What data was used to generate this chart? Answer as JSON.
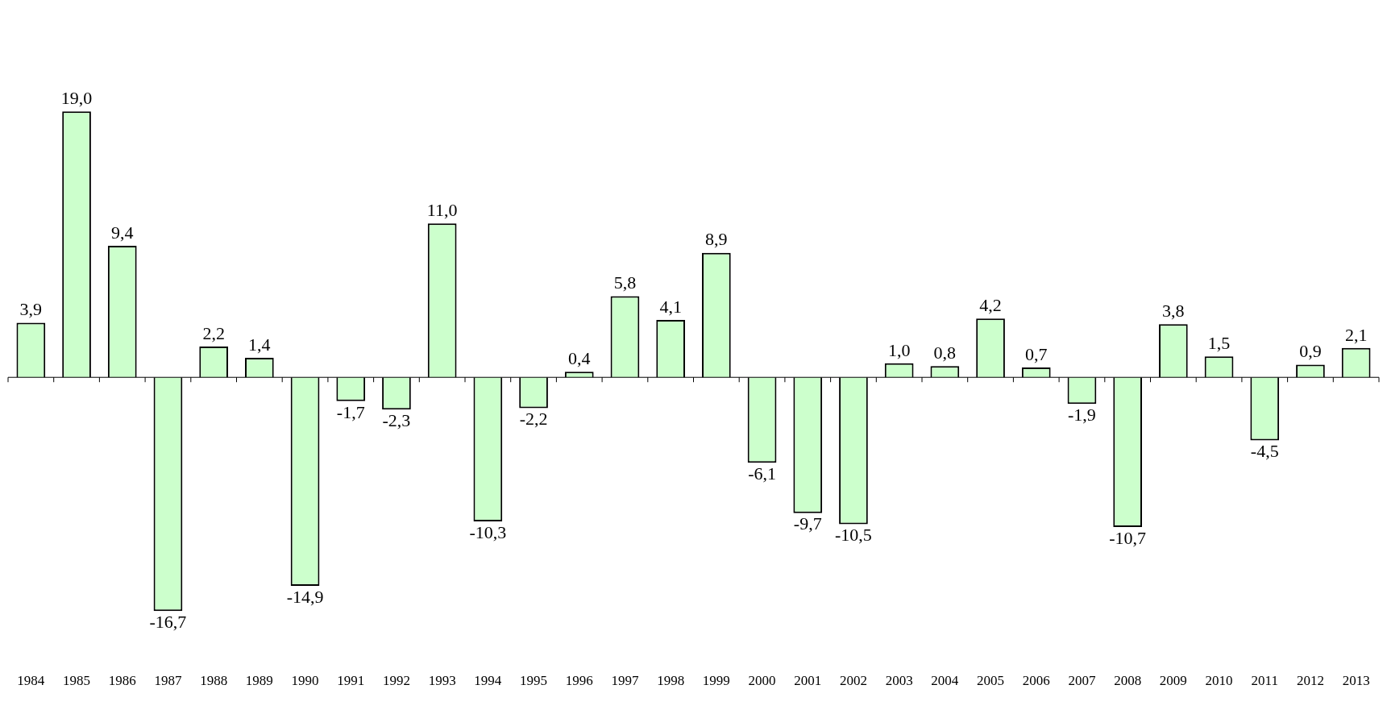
{
  "chart_data": {
    "type": "bar",
    "categories": [
      "1984",
      "1985",
      "1986",
      "1987",
      "1988",
      "1989",
      "1990",
      "1991",
      "1992",
      "1993",
      "1994",
      "1995",
      "1996",
      "1997",
      "1998",
      "1999",
      "2000",
      "2001",
      "2002",
      "2003",
      "2004",
      "2005",
      "2006",
      "2007",
      "2008",
      "2009",
      "2010",
      "2011",
      "2012",
      "2013"
    ],
    "values": [
      3.9,
      19.0,
      9.4,
      -16.7,
      2.2,
      1.4,
      -14.9,
      -1.7,
      -2.3,
      11.0,
      -10.3,
      -2.2,
      0.4,
      5.8,
      4.1,
      8.9,
      -6.1,
      -9.7,
      -10.5,
      1.0,
      0.8,
      4.2,
      0.7,
      -1.9,
      -10.7,
      3.8,
      1.5,
      -4.5,
      0.9,
      2.1
    ],
    "value_labels": [
      "3,9",
      "19,0",
      "9,4",
      "-16,7",
      "2,2",
      "1,4",
      "-14,9",
      "-1,7",
      "-2,3",
      "11,0",
      "-10,3",
      "-2,2",
      "0,4",
      "5,8",
      "4,1",
      "8,9",
      "-6,1",
      "-9,7",
      "-10,5",
      "1,0",
      "0,8",
      "4,2",
      "0,7",
      "-1,9",
      "-10,7",
      "3,8",
      "1,5",
      "-4,5",
      "0,9",
      "2,1"
    ],
    "color": "#ccffcc",
    "tick_labels": "x",
    "grid": false,
    "legend": false
  }
}
